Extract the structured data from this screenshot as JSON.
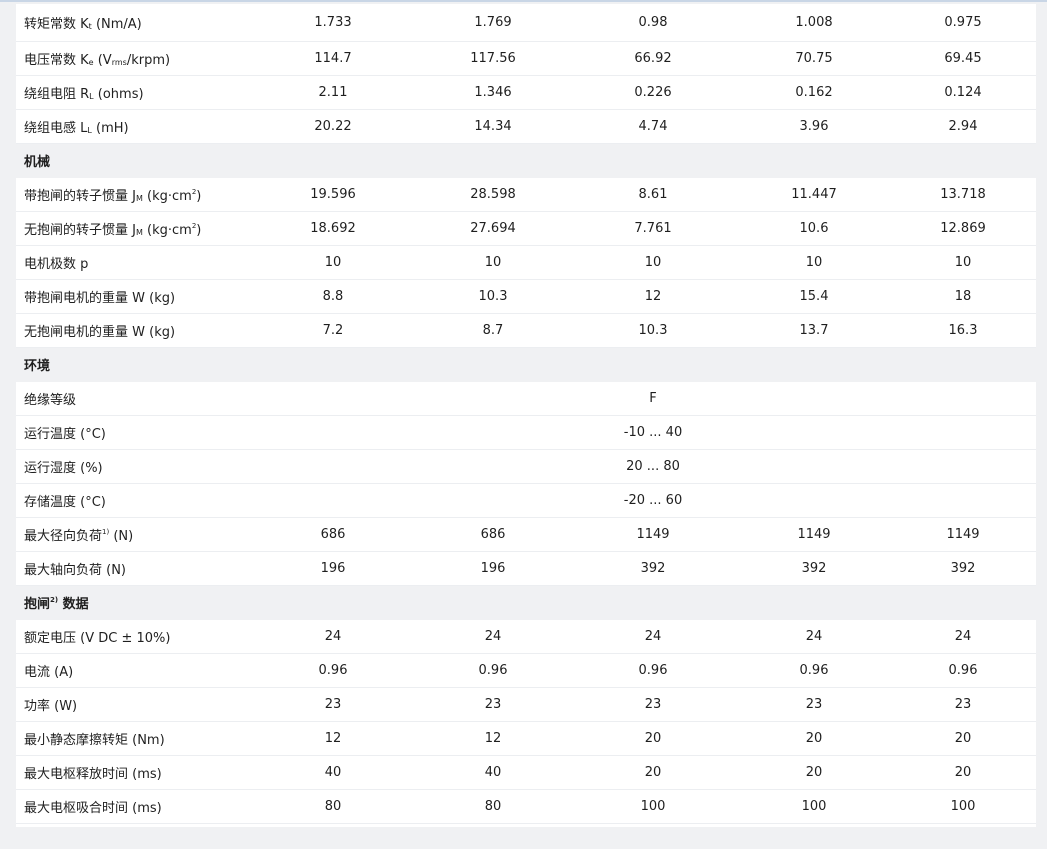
{
  "rows": [
    {
      "type": "row",
      "label": [
        "转矩常数 K",
        {
          "sub": "t"
        },
        " (Nm/A)"
      ],
      "values": [
        "1.733",
        "1.769",
        "0.98",
        "1.008",
        "0.975"
      ]
    },
    {
      "type": "row",
      "label": [
        "电压常数 K",
        {
          "sub": "e"
        },
        " (V",
        {
          "sub": "rms"
        },
        "/krpm)"
      ],
      "values": [
        "114.7",
        "117.56",
        "66.92",
        "70.75",
        "69.45"
      ]
    },
    {
      "type": "row",
      "label": [
        "绕组电阻 R",
        {
          "sub": "L"
        },
        " (ohms)"
      ],
      "values": [
        "2.11",
        "1.346",
        "0.226",
        "0.162",
        "0.124"
      ]
    },
    {
      "type": "row",
      "label": [
        "绕组电感 L",
        {
          "sub": "L"
        },
        " (mH)"
      ],
      "values": [
        "20.22",
        "14.34",
        "4.74",
        "3.96",
        "2.94"
      ]
    },
    {
      "type": "section",
      "label": [
        "机械"
      ]
    },
    {
      "type": "row",
      "label": [
        "带抱闸的转子惯量 J",
        {
          "sub": "M"
        },
        " (kg·cm",
        {
          "sup": "2"
        },
        ")"
      ],
      "values": [
        "19.596",
        "28.598",
        "8.61",
        "11.447",
        "13.718"
      ]
    },
    {
      "type": "row",
      "label": [
        "无抱闸的转子惯量 J",
        {
          "sub": "M"
        },
        " (kg·cm",
        {
          "sup": "2"
        },
        ")"
      ],
      "values": [
        "18.692",
        "27.694",
        "7.761",
        "10.6",
        "12.869"
      ]
    },
    {
      "type": "row",
      "label": [
        "电机极数 p"
      ],
      "values": [
        "10",
        "10",
        "10",
        "10",
        "10"
      ]
    },
    {
      "type": "row",
      "label": [
        "带抱闸电机的重量 W (kg)"
      ],
      "values": [
        "8.8",
        "10.3",
        "12",
        "15.4",
        "18"
      ]
    },
    {
      "type": "row",
      "label": [
        "无抱闸电机的重量 W (kg)"
      ],
      "values": [
        "7.2",
        "8.7",
        "10.3",
        "13.7",
        "16.3"
      ]
    },
    {
      "type": "section",
      "label": [
        "环境"
      ]
    },
    {
      "type": "row",
      "label": [
        "绝缘等级"
      ],
      "values": [
        "",
        "",
        "F",
        "",
        ""
      ]
    },
    {
      "type": "row",
      "label": [
        "运行温度 (°C)"
      ],
      "values": [
        "",
        "",
        "-10 ... 40",
        "",
        ""
      ]
    },
    {
      "type": "row",
      "label": [
        "运行湿度 (%)"
      ],
      "values": [
        "",
        "",
        "20 ... 80",
        "",
        ""
      ]
    },
    {
      "type": "row",
      "label": [
        "存储温度 (°C)"
      ],
      "values": [
        "",
        "",
        "-20 ... 60",
        "",
        ""
      ]
    },
    {
      "type": "row",
      "label": [
        "最大径向负荷",
        {
          "sup": "1)"
        },
        " (N)"
      ],
      "values": [
        "686",
        "686",
        "1149",
        "1149",
        "1149"
      ]
    },
    {
      "type": "row",
      "label": [
        "最大轴向负荷 (N)"
      ],
      "values": [
        "196",
        "196",
        "392",
        "392",
        "392"
      ]
    },
    {
      "type": "section",
      "label": [
        "抱闸",
        {
          "sup": "2)"
        },
        " 数据"
      ]
    },
    {
      "type": "row",
      "label": [
        "额定电压 (V DC ± 10%)"
      ],
      "values": [
        "24",
        "24",
        "24",
        "24",
        "24"
      ]
    },
    {
      "type": "row",
      "label": [
        "电流 (A)"
      ],
      "values": [
        "0.96",
        "0.96",
        "0.96",
        "0.96",
        "0.96"
      ]
    },
    {
      "type": "row",
      "label": [
        "功率 (W)"
      ],
      "values": [
        "23",
        "23",
        "23",
        "23",
        "23"
      ]
    },
    {
      "type": "row",
      "label": [
        "最小静态摩擦转矩 (Nm)"
      ],
      "values": [
        "12",
        "12",
        "20",
        "20",
        "20"
      ]
    },
    {
      "type": "row",
      "label": [
        "最大电枢释放时间 (ms)"
      ],
      "values": [
        "40",
        "40",
        "20",
        "20",
        "20"
      ]
    },
    {
      "type": "row",
      "label": [
        "最大电枢吸合时间 (ms)"
      ],
      "values": [
        "80",
        "80",
        "100",
        "100",
        "100"
      ]
    }
  ]
}
